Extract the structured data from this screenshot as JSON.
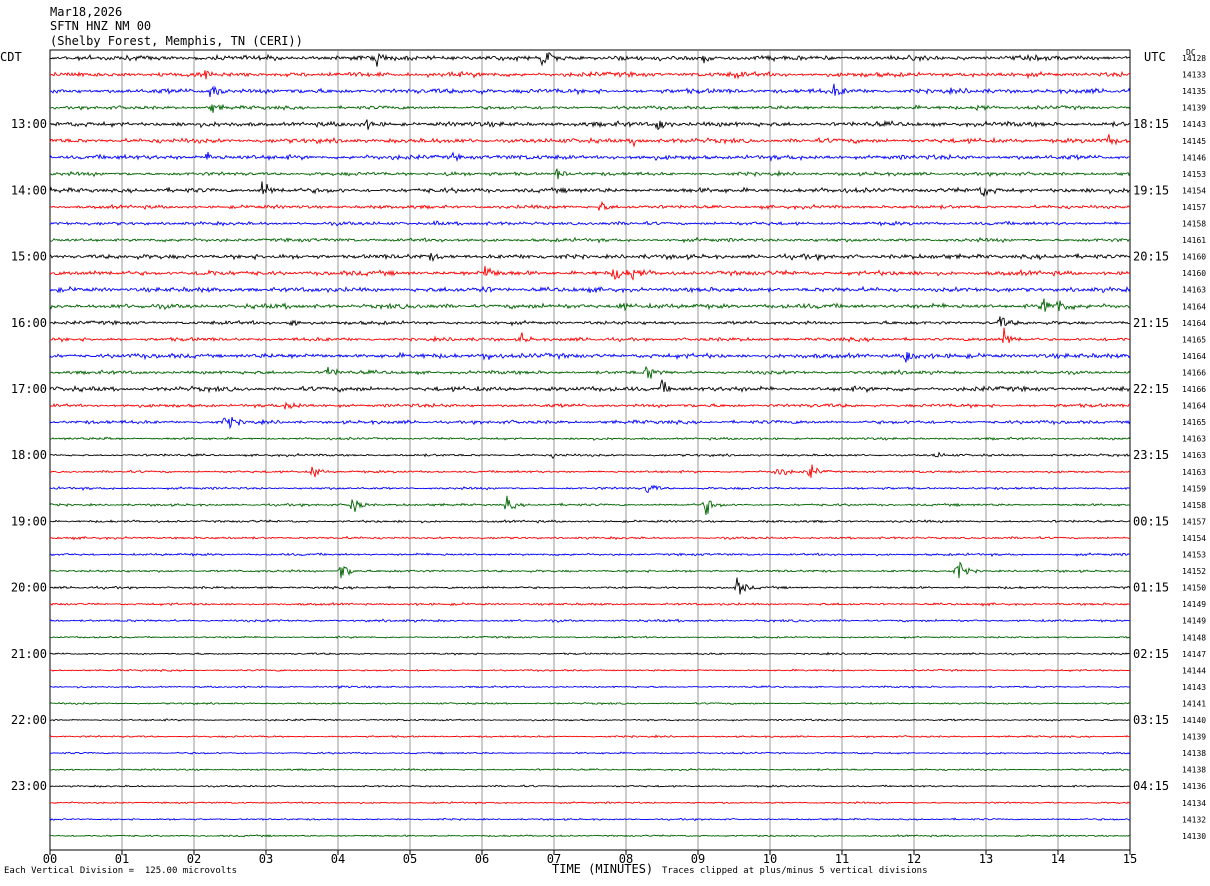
{
  "header": {
    "date": "Mar18,2026",
    "station": "SFTN HNZ NM 00",
    "location": "(Shelby Forest, Memphis, TN (CERI))"
  },
  "left_zone": "CDT",
  "right_zone": "UTC",
  "dc_label": "DC",
  "footer": {
    "scale": "Each Vertical Division =  125.00 microvolts",
    "xlabel": "TIME (MINUTES)",
    "clip_note": "Traces clipped at plus/minus 5 vertical divisions"
  },
  "colors": {
    "trace_cycle": [
      "#000000",
      "#ff0000",
      "#0000ff",
      "#006400"
    ],
    "grid": "#808080"
  },
  "chart_data": {
    "type": "line",
    "title": "SFTN HNZ NM 00",
    "xlabel": "TIME (MINUTES)",
    "xlim": [
      0,
      15
    ],
    "x_tick_labels": [
      "00",
      "01",
      "02",
      "03",
      "04",
      "05",
      "06",
      "07",
      "08",
      "09",
      "10",
      "11",
      "12",
      "13",
      "14",
      "15"
    ],
    "left_time_labels": [
      "13:00",
      "14:00",
      "15:00",
      "16:00",
      "17:00",
      "18:00",
      "19:00",
      "20:00",
      "21:00",
      "22:00",
      "23:00"
    ],
    "right_time_labels": [
      "18:15",
      "19:15",
      "20:15",
      "21:15",
      "22:15",
      "23:15",
      "00:15",
      "01:15",
      "02:15",
      "03:15",
      "04:15"
    ],
    "dc_offsets": [
      14128,
      14133,
      14135,
      14139,
      14143,
      14145,
      14146,
      14153,
      14154,
      14157,
      14158,
      14161,
      14160,
      14160,
      14163,
      14164,
      14164,
      14165,
      14164,
      14166,
      14166,
      14164,
      14165,
      14163,
      14163,
      14163,
      14159,
      14158,
      14157,
      14154,
      14153,
      14152,
      14150,
      14149,
      14149,
      14148,
      14147,
      14144,
      14143,
      14141,
      14140,
      14139,
      14138,
      14138,
      14136,
      14134,
      14132,
      14130
    ],
    "row_colors": [
      "black",
      "red",
      "blue",
      "green"
    ],
    "noise_amplitude": [
      4,
      4,
      4,
      3,
      4,
      4,
      4,
      3,
      4,
      3,
      3,
      3,
      4,
      4,
      4,
      4,
      3,
      3,
      4,
      3,
      4,
      3,
      3,
      2,
      2,
      2,
      2,
      2,
      2,
      2,
      2,
      2,
      2,
      2,
      2,
      1.5,
      1.5,
      1.5,
      1.5,
      1.5,
      1.5,
      1.5,
      1.5,
      1.5,
      1.5,
      1.5,
      1.5,
      1.5
    ],
    "events": [
      {
        "row": 0,
        "minute": 4.55,
        "amp": 10
      },
      {
        "row": 0,
        "minute": 6.85,
        "amp": 26
      },
      {
        "row": 0,
        "minute": 9.1,
        "amp": 14
      },
      {
        "row": 1,
        "minute": 2.15,
        "amp": 8
      },
      {
        "row": 1,
        "minute": 9.5,
        "amp": 5
      },
      {
        "row": 2,
        "minute": 2.25,
        "amp": 20
      },
      {
        "row": 2,
        "minute": 5.9,
        "amp": 8
      },
      {
        "row": 2,
        "minute": 10.9,
        "amp": 10
      },
      {
        "row": 3,
        "minute": 2.25,
        "amp": 10
      },
      {
        "row": 3,
        "minute": 12.9,
        "amp": 10
      },
      {
        "row": 4,
        "minute": 8.45,
        "amp": 16
      },
      {
        "row": 4,
        "minute": 4.4,
        "amp": 6
      },
      {
        "row": 5,
        "minute": 8.1,
        "amp": 10
      },
      {
        "row": 5,
        "minute": 14.7,
        "amp": 8
      },
      {
        "row": 6,
        "minute": 2.2,
        "amp": 10
      },
      {
        "row": 6,
        "minute": 5.6,
        "amp": 6
      },
      {
        "row": 7,
        "minute": 7.05,
        "amp": 10
      },
      {
        "row": 7,
        "minute": 5.5,
        "amp": 6
      },
      {
        "row": 8,
        "minute": 2.95,
        "amp": 20
      },
      {
        "row": 8,
        "minute": 12.95,
        "amp": 12
      },
      {
        "row": 9,
        "minute": 7.65,
        "amp": 12
      },
      {
        "row": 10,
        "minute": 5.3,
        "amp": 5
      },
      {
        "row": 12,
        "minute": 5.25,
        "amp": 7
      },
      {
        "row": 13,
        "minute": 2.1,
        "amp": 12
      },
      {
        "row": 13,
        "minute": 6.05,
        "amp": 16
      },
      {
        "row": 13,
        "minute": 7.85,
        "amp": 14
      },
      {
        "row": 13,
        "minute": 8.1,
        "amp": 14
      },
      {
        "row": 14,
        "minute": 6.0,
        "amp": 6
      },
      {
        "row": 15,
        "minute": 7.9,
        "amp": 10
      },
      {
        "row": 15,
        "minute": 13.8,
        "amp": 18
      },
      {
        "row": 15,
        "minute": 14.0,
        "amp": 16
      },
      {
        "row": 16,
        "minute": 3.35,
        "amp": 12
      },
      {
        "row": 16,
        "minute": 13.2,
        "amp": 12
      },
      {
        "row": 17,
        "minute": 6.55,
        "amp": 12
      },
      {
        "row": 17,
        "minute": 13.25,
        "amp": 20
      },
      {
        "row": 18,
        "minute": 6.05,
        "amp": 14
      },
      {
        "row": 18,
        "minute": 11.9,
        "amp": 16
      },
      {
        "row": 19,
        "minute": 3.85,
        "amp": 14
      },
      {
        "row": 19,
        "minute": 8.3,
        "amp": 18
      },
      {
        "row": 20,
        "minute": 8.5,
        "amp": 14
      },
      {
        "row": 21,
        "minute": 3.3,
        "amp": 14
      },
      {
        "row": 22,
        "minute": 2.45,
        "amp": 16
      },
      {
        "row": 23,
        "minute": 0.75,
        "amp": 4
      },
      {
        "row": 24,
        "minute": 7.0,
        "amp": 4
      },
      {
        "row": 24,
        "minute": 12.3,
        "amp": 6
      },
      {
        "row": 25,
        "minute": 3.65,
        "amp": 16
      },
      {
        "row": 25,
        "minute": 10.1,
        "amp": 16
      },
      {
        "row": 25,
        "minute": 10.55,
        "amp": 16
      },
      {
        "row": 26,
        "minute": 8.3,
        "amp": 14
      },
      {
        "row": 27,
        "minute": 4.2,
        "amp": 26
      },
      {
        "row": 27,
        "minute": 6.35,
        "amp": 14
      },
      {
        "row": 27,
        "minute": 9.1,
        "amp": 20
      },
      {
        "row": 31,
        "minute": 4.05,
        "amp": 26
      },
      {
        "row": 31,
        "minute": 12.6,
        "amp": 24
      },
      {
        "row": 32,
        "minute": 9.55,
        "amp": 18
      },
      {
        "row": 38,
        "minute": 4.0,
        "amp": 4
      }
    ]
  }
}
